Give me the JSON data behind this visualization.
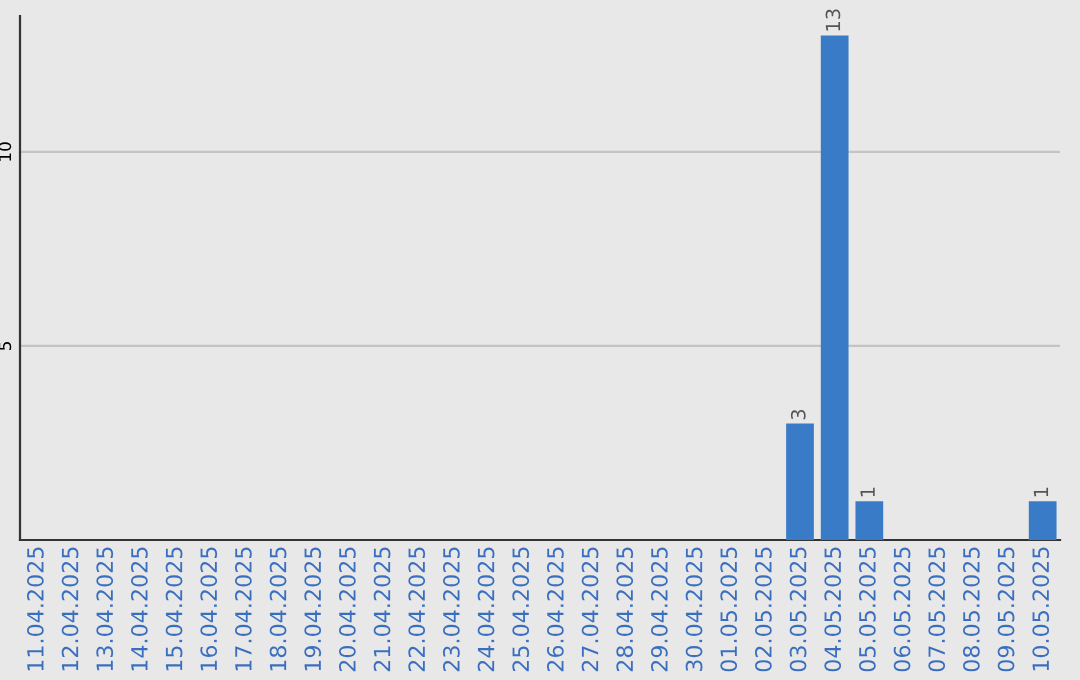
{
  "chart_data": {
    "type": "bar",
    "categories": [
      "11.04.2025",
      "12.04.2025",
      "13.04.2025",
      "14.04.2025",
      "15.04.2025",
      "16.04.2025",
      "17.04.2025",
      "18.04.2025",
      "19.04.2025",
      "20.04.2025",
      "21.04.2025",
      "22.04.2025",
      "23.04.2025",
      "24.04.2025",
      "25.04.2025",
      "26.04.2025",
      "27.04.2025",
      "28.04.2025",
      "29.04.2025",
      "30.04.2025",
      "01.05.2025",
      "02.05.2025",
      "03.05.2025",
      "04.05.2025",
      "05.05.2025",
      "06.05.2025",
      "07.05.2025",
      "08.05.2025",
      "09.05.2025",
      "10.05.2025"
    ],
    "values": [
      0,
      0,
      0,
      0,
      0,
      0,
      0,
      0,
      0,
      0,
      0,
      0,
      0,
      0,
      0,
      0,
      0,
      0,
      0,
      0,
      0,
      0,
      3,
      13,
      1,
      0,
      0,
      0,
      0,
      1
    ],
    "value_labels": [
      null,
      null,
      null,
      null,
      null,
      null,
      null,
      null,
      null,
      null,
      null,
      null,
      null,
      null,
      null,
      null,
      null,
      null,
      null,
      null,
      null,
      null,
      "3",
      "13",
      "1",
      null,
      null,
      null,
      null,
      "1"
    ],
    "color": "#3a7bc8",
    "ylim": [
      0,
      13.5
    ],
    "yticks": [
      5,
      10
    ],
    "grid": "y",
    "legend": false
  }
}
